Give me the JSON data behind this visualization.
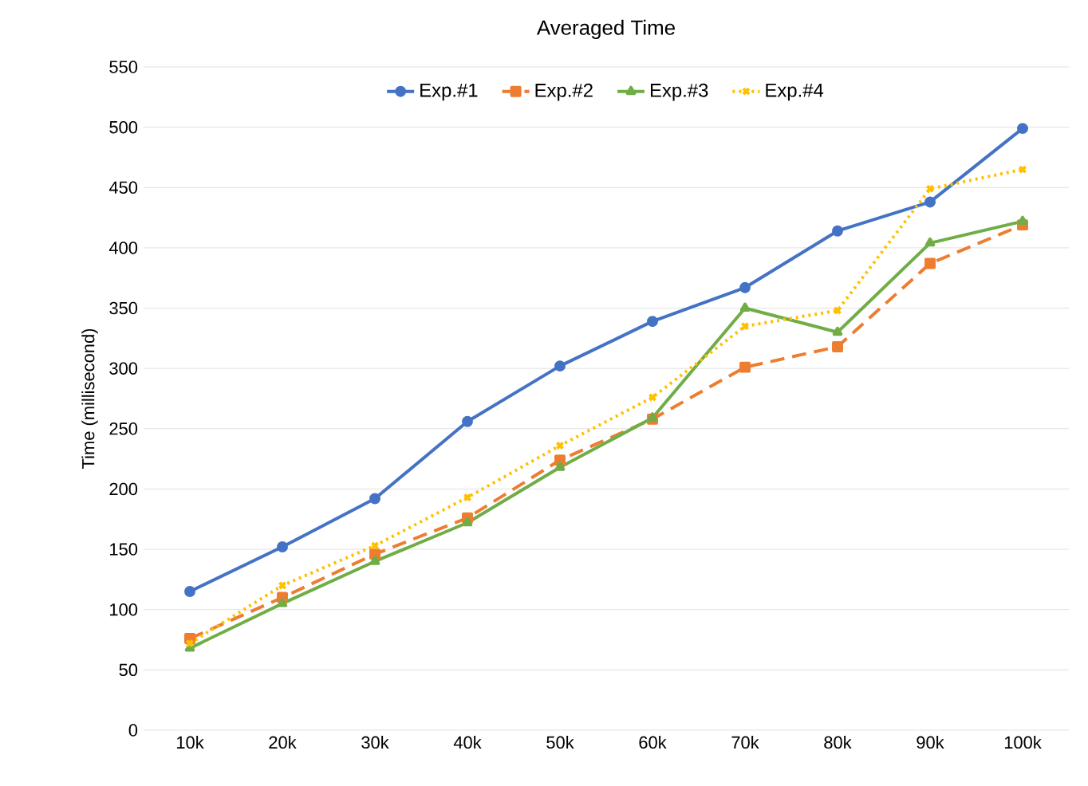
{
  "chart_data": {
    "type": "line",
    "title": "Averaged Time",
    "ylabel": "Time (millisecond)",
    "categories": [
      "10k",
      "20k",
      "30k",
      "40k",
      "50k",
      "60k",
      "70k",
      "80k",
      "90k",
      "100k"
    ],
    "series": [
      {
        "name": "Exp.#1",
        "color": "#4472c4",
        "marker": "circle",
        "line_style": "solid",
        "values": [
          115,
          152,
          192,
          256,
          302,
          339,
          367,
          414,
          438,
          499
        ]
      },
      {
        "name": "Exp.#2",
        "color": "#ed7d31",
        "marker": "square",
        "line_style": "dashed",
        "values": [
          76,
          110,
          146,
          176,
          224,
          258,
          301,
          318,
          387,
          419
        ]
      },
      {
        "name": "Exp.#3",
        "color": "#70ad47",
        "marker": "triangle",
        "line_style": "solid",
        "values": [
          68,
          105,
          140,
          172,
          218,
          259,
          350,
          330,
          404,
          422
        ]
      },
      {
        "name": "Exp.#4",
        "color": "#ffc000",
        "marker": "cross",
        "line_style": "dotted",
        "values": [
          72,
          120,
          153,
          193,
          236,
          276,
          335,
          348,
          449,
          465
        ]
      }
    ],
    "ylim": [
      0,
      550
    ],
    "yticks": [
      0,
      50,
      100,
      150,
      200,
      250,
      300,
      350,
      400,
      450,
      500,
      550
    ],
    "grid": "y",
    "legend": "top"
  }
}
